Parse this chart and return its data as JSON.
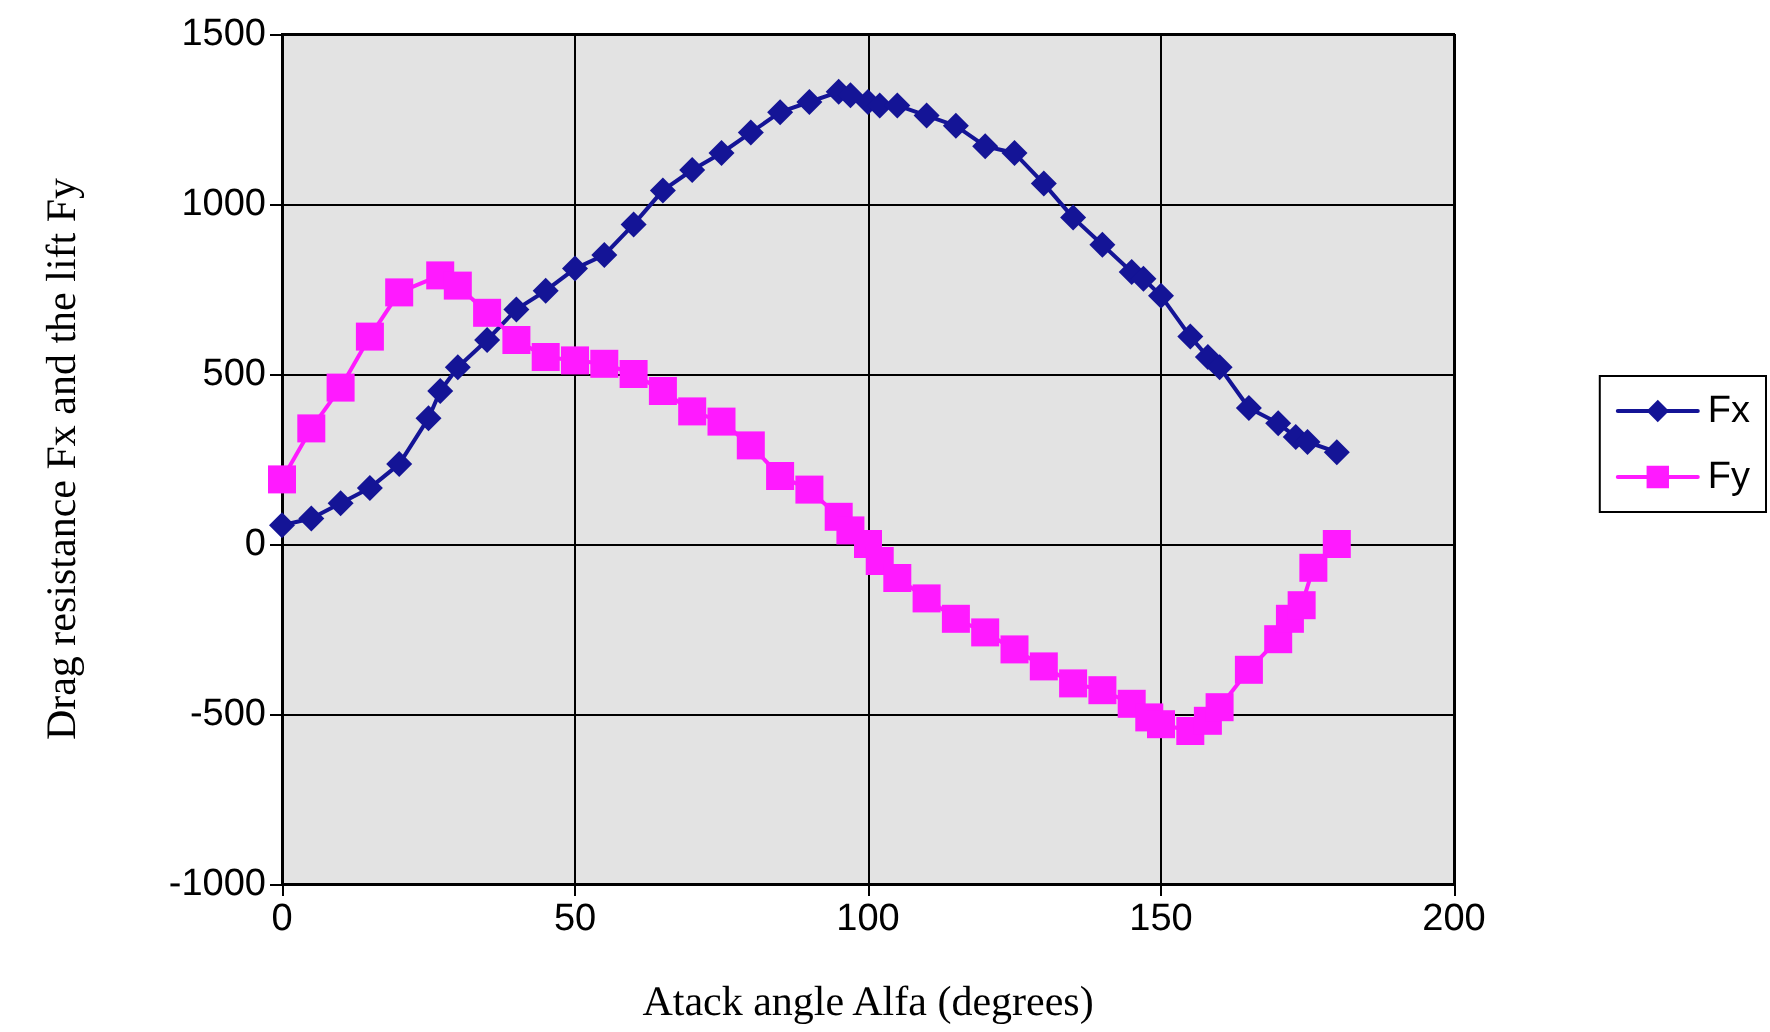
{
  "chart_data": {
    "type": "line",
    "xlabel": "Atack angle Alfa (degrees)",
    "ylabel": "Drag resistance Fx and the lift Fy",
    "xlim": [
      0,
      200
    ],
    "xticks": [
      0,
      50,
      100,
      150,
      200
    ],
    "ylim": [
      -1000,
      1500
    ],
    "yticks": [
      -1000,
      -500,
      0,
      500,
      1000,
      1500
    ],
    "grid": true,
    "legend": "right",
    "line_style": "solid",
    "series": [
      {
        "name": "Fx",
        "color": "#141496",
        "marker": "diamond",
        "x": [
          0,
          5,
          10,
          15,
          20,
          25,
          27,
          30,
          35,
          40,
          45,
          50,
          55,
          60,
          65,
          70,
          75,
          80,
          85,
          90,
          95,
          97,
          100,
          102,
          105,
          110,
          115,
          120,
          125,
          130,
          135,
          140,
          145,
          147,
          150,
          155,
          158,
          160,
          165,
          170,
          173,
          175,
          180
        ],
        "values": [
          55,
          75,
          120,
          165,
          235,
          370,
          450,
          520,
          600,
          690,
          745,
          810,
          850,
          940,
          1040,
          1100,
          1150,
          1210,
          1270,
          1300,
          1330,
          1320,
          1300,
          1290,
          1290,
          1260,
          1230,
          1170,
          1150,
          1060,
          960,
          880,
          800,
          780,
          730,
          610,
          550,
          520,
          400,
          355,
          315,
          300,
          270
        ]
      },
      {
        "name": "Fy",
        "color": "#ff1aff",
        "marker": "square",
        "x": [
          0,
          5,
          10,
          15,
          20,
          27,
          30,
          35,
          40,
          45,
          50,
          55,
          60,
          65,
          70,
          75,
          80,
          85,
          90,
          95,
          97,
          100,
          102,
          105,
          110,
          115,
          120,
          125,
          130,
          135,
          140,
          145,
          148,
          150,
          155,
          158,
          160,
          165,
          170,
          172,
          174,
          176,
          180
        ],
        "values": [
          190,
          340,
          460,
          610,
          740,
          790,
          760,
          680,
          600,
          550,
          540,
          530,
          500,
          450,
          390,
          360,
          290,
          200,
          160,
          80,
          40,
          0,
          -50,
          -100,
          -160,
          -220,
          -260,
          -310,
          -360,
          -410,
          -430,
          -470,
          -510,
          -530,
          -550,
          -520,
          -480,
          -370,
          -280,
          -220,
          -180,
          -70,
          0
        ]
      }
    ]
  }
}
